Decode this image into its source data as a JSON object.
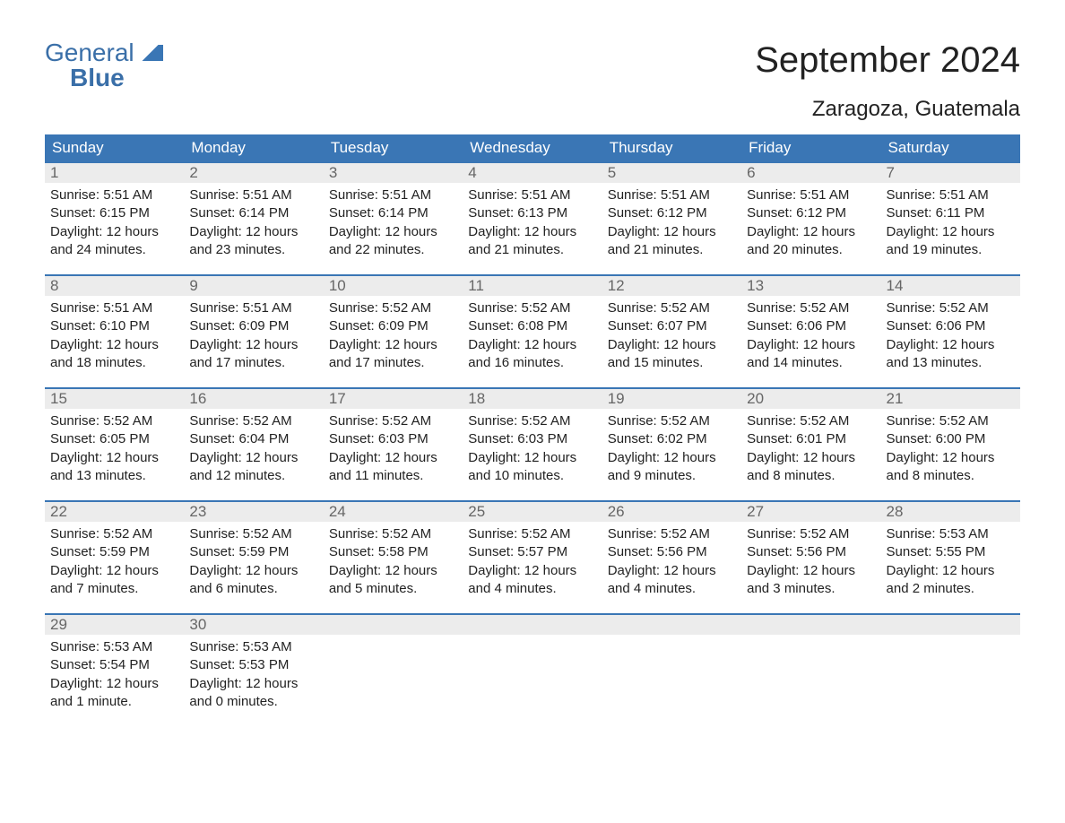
{
  "logo": {
    "line1": "General",
    "line2": "Blue"
  },
  "title": "September 2024",
  "location": "Zaragoza, Guatemala",
  "colors": {
    "header_bg": "#3a76b5",
    "header_text": "#ffffff",
    "daynum_bg": "#ececec",
    "daynum_border": "#3a76b5",
    "body_text": "#222222",
    "logo_color": "#3a6fa8",
    "page_bg": "#ffffff"
  },
  "day_headers": [
    "Sunday",
    "Monday",
    "Tuesday",
    "Wednesday",
    "Thursday",
    "Friday",
    "Saturday"
  ],
  "weeks": [
    [
      {
        "n": "1",
        "sunrise": "Sunrise: 5:51 AM",
        "sunset": "Sunset: 6:15 PM",
        "dl1": "Daylight: 12 hours",
        "dl2": "and 24 minutes."
      },
      {
        "n": "2",
        "sunrise": "Sunrise: 5:51 AM",
        "sunset": "Sunset: 6:14 PM",
        "dl1": "Daylight: 12 hours",
        "dl2": "and 23 minutes."
      },
      {
        "n": "3",
        "sunrise": "Sunrise: 5:51 AM",
        "sunset": "Sunset: 6:14 PM",
        "dl1": "Daylight: 12 hours",
        "dl2": "and 22 minutes."
      },
      {
        "n": "4",
        "sunrise": "Sunrise: 5:51 AM",
        "sunset": "Sunset: 6:13 PM",
        "dl1": "Daylight: 12 hours",
        "dl2": "and 21 minutes."
      },
      {
        "n": "5",
        "sunrise": "Sunrise: 5:51 AM",
        "sunset": "Sunset: 6:12 PM",
        "dl1": "Daylight: 12 hours",
        "dl2": "and 21 minutes."
      },
      {
        "n": "6",
        "sunrise": "Sunrise: 5:51 AM",
        "sunset": "Sunset: 6:12 PM",
        "dl1": "Daylight: 12 hours",
        "dl2": "and 20 minutes."
      },
      {
        "n": "7",
        "sunrise": "Sunrise: 5:51 AM",
        "sunset": "Sunset: 6:11 PM",
        "dl1": "Daylight: 12 hours",
        "dl2": "and 19 minutes."
      }
    ],
    [
      {
        "n": "8",
        "sunrise": "Sunrise: 5:51 AM",
        "sunset": "Sunset: 6:10 PM",
        "dl1": "Daylight: 12 hours",
        "dl2": "and 18 minutes."
      },
      {
        "n": "9",
        "sunrise": "Sunrise: 5:51 AM",
        "sunset": "Sunset: 6:09 PM",
        "dl1": "Daylight: 12 hours",
        "dl2": "and 17 minutes."
      },
      {
        "n": "10",
        "sunrise": "Sunrise: 5:52 AM",
        "sunset": "Sunset: 6:09 PM",
        "dl1": "Daylight: 12 hours",
        "dl2": "and 17 minutes."
      },
      {
        "n": "11",
        "sunrise": "Sunrise: 5:52 AM",
        "sunset": "Sunset: 6:08 PM",
        "dl1": "Daylight: 12 hours",
        "dl2": "and 16 minutes."
      },
      {
        "n": "12",
        "sunrise": "Sunrise: 5:52 AM",
        "sunset": "Sunset: 6:07 PM",
        "dl1": "Daylight: 12 hours",
        "dl2": "and 15 minutes."
      },
      {
        "n": "13",
        "sunrise": "Sunrise: 5:52 AM",
        "sunset": "Sunset: 6:06 PM",
        "dl1": "Daylight: 12 hours",
        "dl2": "and 14 minutes."
      },
      {
        "n": "14",
        "sunrise": "Sunrise: 5:52 AM",
        "sunset": "Sunset: 6:06 PM",
        "dl1": "Daylight: 12 hours",
        "dl2": "and 13 minutes."
      }
    ],
    [
      {
        "n": "15",
        "sunrise": "Sunrise: 5:52 AM",
        "sunset": "Sunset: 6:05 PM",
        "dl1": "Daylight: 12 hours",
        "dl2": "and 13 minutes."
      },
      {
        "n": "16",
        "sunrise": "Sunrise: 5:52 AM",
        "sunset": "Sunset: 6:04 PM",
        "dl1": "Daylight: 12 hours",
        "dl2": "and 12 minutes."
      },
      {
        "n": "17",
        "sunrise": "Sunrise: 5:52 AM",
        "sunset": "Sunset: 6:03 PM",
        "dl1": "Daylight: 12 hours",
        "dl2": "and 11 minutes."
      },
      {
        "n": "18",
        "sunrise": "Sunrise: 5:52 AM",
        "sunset": "Sunset: 6:03 PM",
        "dl1": "Daylight: 12 hours",
        "dl2": "and 10 minutes."
      },
      {
        "n": "19",
        "sunrise": "Sunrise: 5:52 AM",
        "sunset": "Sunset: 6:02 PM",
        "dl1": "Daylight: 12 hours",
        "dl2": "and 9 minutes."
      },
      {
        "n": "20",
        "sunrise": "Sunrise: 5:52 AM",
        "sunset": "Sunset: 6:01 PM",
        "dl1": "Daylight: 12 hours",
        "dl2": "and 8 minutes."
      },
      {
        "n": "21",
        "sunrise": "Sunrise: 5:52 AM",
        "sunset": "Sunset: 6:00 PM",
        "dl1": "Daylight: 12 hours",
        "dl2": "and 8 minutes."
      }
    ],
    [
      {
        "n": "22",
        "sunrise": "Sunrise: 5:52 AM",
        "sunset": "Sunset: 5:59 PM",
        "dl1": "Daylight: 12 hours",
        "dl2": "and 7 minutes."
      },
      {
        "n": "23",
        "sunrise": "Sunrise: 5:52 AM",
        "sunset": "Sunset: 5:59 PM",
        "dl1": "Daylight: 12 hours",
        "dl2": "and 6 minutes."
      },
      {
        "n": "24",
        "sunrise": "Sunrise: 5:52 AM",
        "sunset": "Sunset: 5:58 PM",
        "dl1": "Daylight: 12 hours",
        "dl2": "and 5 minutes."
      },
      {
        "n": "25",
        "sunrise": "Sunrise: 5:52 AM",
        "sunset": "Sunset: 5:57 PM",
        "dl1": "Daylight: 12 hours",
        "dl2": "and 4 minutes."
      },
      {
        "n": "26",
        "sunrise": "Sunrise: 5:52 AM",
        "sunset": "Sunset: 5:56 PM",
        "dl1": "Daylight: 12 hours",
        "dl2": "and 4 minutes."
      },
      {
        "n": "27",
        "sunrise": "Sunrise: 5:52 AM",
        "sunset": "Sunset: 5:56 PM",
        "dl1": "Daylight: 12 hours",
        "dl2": "and 3 minutes."
      },
      {
        "n": "28",
        "sunrise": "Sunrise: 5:53 AM",
        "sunset": "Sunset: 5:55 PM",
        "dl1": "Daylight: 12 hours",
        "dl2": "and 2 minutes."
      }
    ],
    [
      {
        "n": "29",
        "sunrise": "Sunrise: 5:53 AM",
        "sunset": "Sunset: 5:54 PM",
        "dl1": "Daylight: 12 hours",
        "dl2": "and 1 minute."
      },
      {
        "n": "30",
        "sunrise": "Sunrise: 5:53 AM",
        "sunset": "Sunset: 5:53 PM",
        "dl1": "Daylight: 12 hours",
        "dl2": "and 0 minutes."
      },
      {
        "n": "",
        "sunrise": "",
        "sunset": "",
        "dl1": "",
        "dl2": "",
        "empty": true
      },
      {
        "n": "",
        "sunrise": "",
        "sunset": "",
        "dl1": "",
        "dl2": "",
        "empty": true
      },
      {
        "n": "",
        "sunrise": "",
        "sunset": "",
        "dl1": "",
        "dl2": "",
        "empty": true
      },
      {
        "n": "",
        "sunrise": "",
        "sunset": "",
        "dl1": "",
        "dl2": "",
        "empty": true
      },
      {
        "n": "",
        "sunrise": "",
        "sunset": "",
        "dl1": "",
        "dl2": "",
        "empty": true
      }
    ]
  ]
}
